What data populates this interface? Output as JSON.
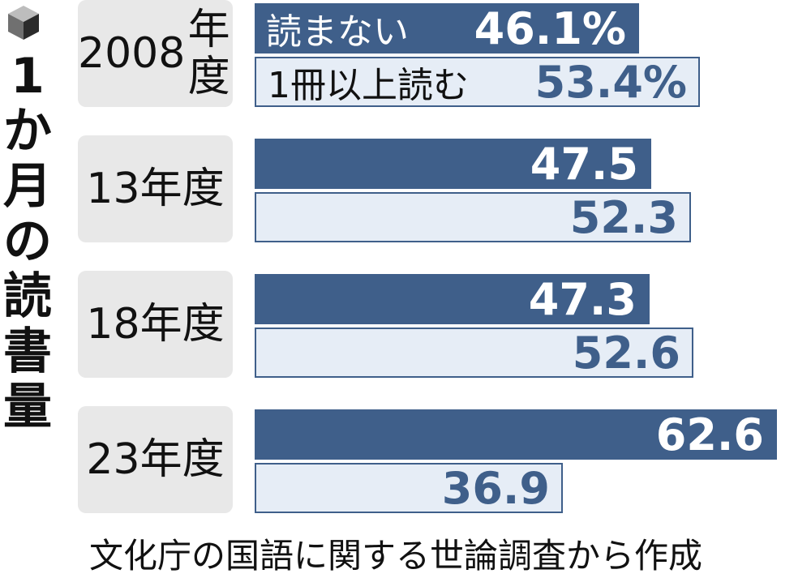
{
  "title": "1か月の読書量",
  "source": "文化庁の国語に関する世論調査から作成",
  "colors": {
    "dark": "#3f5f8a",
    "light": "#e6edf6",
    "box": "#e8e8e8"
  },
  "icon": "cube-icon",
  "chart_data": {
    "type": "bar",
    "orientation": "horizontal",
    "unit": "%",
    "categories": [
      [
        "2008",
        "年度"
      ],
      [
        "13年度"
      ],
      [
        "18年度"
      ],
      [
        "23年度"
      ]
    ],
    "series": [
      {
        "name": "読まない",
        "values": [
          46.1,
          47.5,
          47.3,
          62.6
        ],
        "labels": [
          "46.1%",
          "47.5",
          "47.3",
          "62.6"
        ]
      },
      {
        "name": "1冊以上読む",
        "values": [
          53.4,
          52.3,
          52.6,
          36.9
        ],
        "labels": [
          "53.4%",
          "52.3",
          "52.6",
          "36.9"
        ]
      }
    ],
    "xlim": [
      0,
      70
    ]
  }
}
